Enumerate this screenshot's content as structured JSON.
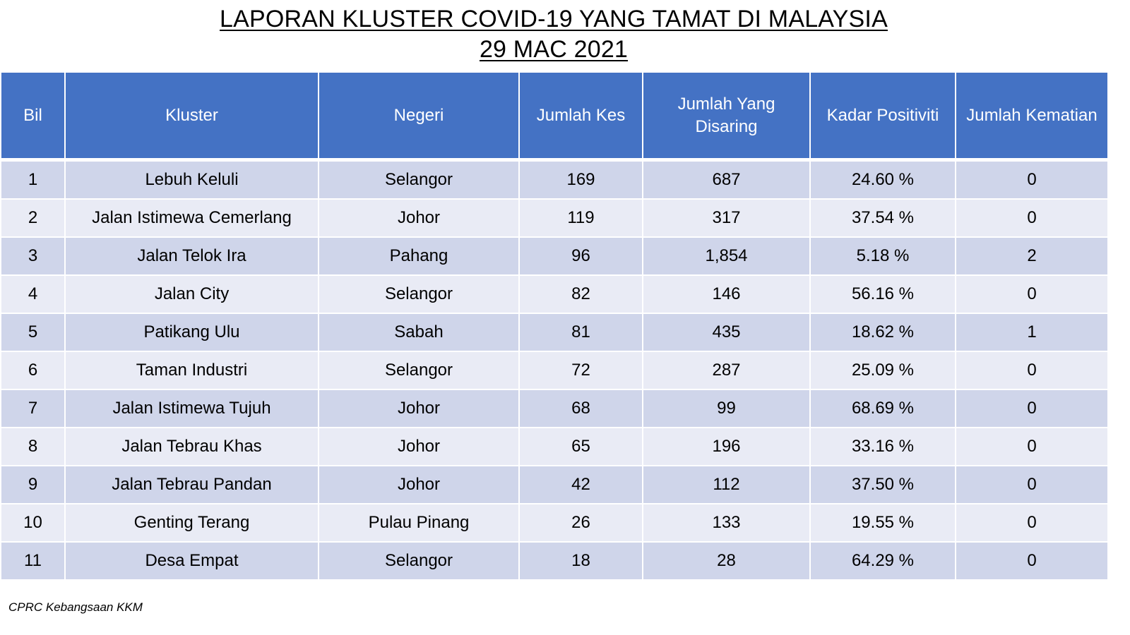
{
  "title": {
    "line1": "LAPORAN KLUSTER COVID-19 YANG TAMAT DI MALAYSIA",
    "line2": "29 MAC 2021"
  },
  "table": {
    "columns": [
      "Bil",
      "Kluster",
      "Negeri",
      "Jumlah Kes",
      "Jumlah Yang Disaring",
      "Kadar Positiviti",
      "Jumlah Kematian"
    ],
    "rows": [
      [
        "1",
        "Lebuh Keluli",
        "Selangor",
        "169",
        "687",
        "24.60 %",
        "0"
      ],
      [
        "2",
        "Jalan Istimewa Cemerlang",
        "Johor",
        "119",
        "317",
        "37.54 %",
        "0"
      ],
      [
        "3",
        "Jalan Telok Ira",
        "Pahang",
        "96",
        "1,854",
        "5.18 %",
        "2"
      ],
      [
        "4",
        "Jalan City",
        "Selangor",
        "82",
        "146",
        "56.16 %",
        "0"
      ],
      [
        "5",
        "Patikang Ulu",
        "Sabah",
        "81",
        "435",
        "18.62 %",
        "1"
      ],
      [
        "6",
        "Taman Industri",
        "Selangor",
        "72",
        "287",
        "25.09 %",
        "0"
      ],
      [
        "7",
        "Jalan Istimewa Tujuh",
        "Johor",
        "68",
        "99",
        "68.69 %",
        "0"
      ],
      [
        "8",
        "Jalan Tebrau Khas",
        "Johor",
        "65",
        "196",
        "33.16 %",
        "0"
      ],
      [
        "9",
        "Jalan Tebrau Pandan",
        "Johor",
        "42",
        "112",
        "37.50 %",
        "0"
      ],
      [
        "10",
        "Genting Terang",
        "Pulau Pinang",
        "26",
        "133",
        "19.55 %",
        "0"
      ],
      [
        "11",
        "Desa Empat",
        "Selangor",
        "18",
        "28",
        "64.29 %",
        "0"
      ]
    ]
  },
  "source": "CPRC Kebangsaan KKM",
  "colors": {
    "header_bg": "#4472c4",
    "row_dark": "#cfd5ea",
    "row_light": "#e9ebf5"
  }
}
